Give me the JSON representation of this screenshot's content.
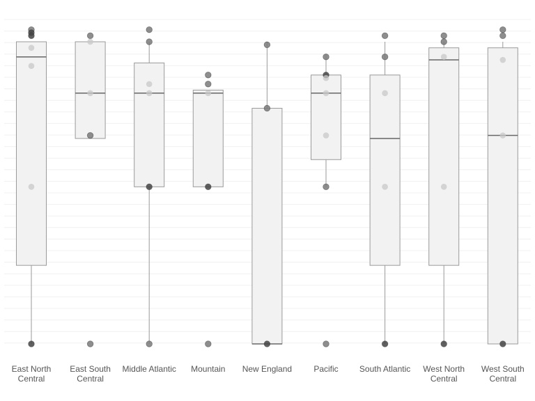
{
  "chart_data": {
    "type": "box",
    "title": "",
    "xlabel": "",
    "ylabel": "",
    "ylim": [
      0,
      100
    ],
    "grid": true,
    "legend": "none",
    "colors": {
      "box_fill": "#f2f2f2",
      "box_stroke": "#9a9a9a",
      "median": "#666666",
      "whisker": "#9a9a9a",
      "grid": "#f0f0f0",
      "point_light": "#c8c8c8",
      "point_mid": "#7a7a7a",
      "point_dark": "#444444"
    },
    "categories": [
      {
        "label": "East North Central",
        "lines": [
          "East North",
          "Central"
        ]
      },
      {
        "label": "East South Central",
        "lines": [
          "East South",
          "Central"
        ]
      },
      {
        "label": "Middle Atlantic",
        "lines": [
          "Middle Atlantic"
        ]
      },
      {
        "label": "Mountain",
        "lines": [
          "Mountain"
        ]
      },
      {
        "label": "New England",
        "lines": [
          "New England"
        ]
      },
      {
        "label": "Pacific",
        "lines": [
          "Pacific"
        ]
      },
      {
        "label": "South Atlantic",
        "lines": [
          "South Atlantic"
        ]
      },
      {
        "label": "West North Central",
        "lines": [
          "West North",
          "Central"
        ]
      },
      {
        "label": "West South Central",
        "lines": [
          "West South",
          "Central"
        ]
      }
    ],
    "boxes": [
      {
        "min": 0,
        "q1": 26,
        "median": 95,
        "q3": 100,
        "max": 100
      },
      {
        "min": 68,
        "q1": 68,
        "median": 83,
        "q3": 100,
        "max": 100
      },
      {
        "min": 0,
        "q1": 52,
        "median": 83,
        "q3": 93,
        "max": 100
      },
      {
        "min": 52,
        "q1": 52,
        "median": 83,
        "q3": 84,
        "max": 84
      },
      {
        "min": 0,
        "q1": 0,
        "median": 0,
        "q3": 78,
        "max": 100
      },
      {
        "min": 52,
        "q1": 61,
        "median": 83,
        "q3": 89,
        "max": 96
      },
      {
        "min": 0,
        "q1": 26,
        "median": 68,
        "q3": 89,
        "max": 100
      },
      {
        "min": 0,
        "q1": 26,
        "median": 94,
        "q3": 98,
        "max": 100
      },
      {
        "min": 0,
        "q1": 0,
        "median": 69,
        "q3": 98,
        "max": 100
      }
    ],
    "points": [
      [
        {
          "y": 104,
          "tone": "mid"
        },
        {
          "y": 103,
          "tone": "dark"
        },
        {
          "y": 102,
          "tone": "dark"
        },
        {
          "y": 98,
          "tone": "light"
        },
        {
          "y": 92,
          "tone": "light"
        },
        {
          "y": 52,
          "tone": "light"
        },
        {
          "y": 0,
          "tone": "dark"
        }
      ],
      [
        {
          "y": 102,
          "tone": "mid"
        },
        {
          "y": 100,
          "tone": "light"
        },
        {
          "y": 83,
          "tone": "light"
        },
        {
          "y": 69,
          "tone": "mid"
        },
        {
          "y": 0,
          "tone": "mid"
        }
      ],
      [
        {
          "y": 104,
          "tone": "mid"
        },
        {
          "y": 100,
          "tone": "mid"
        },
        {
          "y": 86,
          "tone": "light"
        },
        {
          "y": 83,
          "tone": "light"
        },
        {
          "y": 52,
          "tone": "dark"
        },
        {
          "y": 0,
          "tone": "mid"
        }
      ],
      [
        {
          "y": 89,
          "tone": "mid"
        },
        {
          "y": 86,
          "tone": "mid"
        },
        {
          "y": 83,
          "tone": "light"
        },
        {
          "y": 52,
          "tone": "dark"
        },
        {
          "y": 0,
          "tone": "mid"
        }
      ],
      [
        {
          "y": 99,
          "tone": "mid"
        },
        {
          "y": 78,
          "tone": "mid"
        },
        {
          "y": 0,
          "tone": "dark"
        }
      ],
      [
        {
          "y": 95,
          "tone": "mid"
        },
        {
          "y": 89,
          "tone": "dark"
        },
        {
          "y": 88,
          "tone": "light"
        },
        {
          "y": 83,
          "tone": "light"
        },
        {
          "y": 69,
          "tone": "light"
        },
        {
          "y": 52,
          "tone": "mid"
        },
        {
          "y": 0,
          "tone": "mid"
        }
      ],
      [
        {
          "y": 102,
          "tone": "mid"
        },
        {
          "y": 95,
          "tone": "mid"
        },
        {
          "y": 83,
          "tone": "light"
        },
        {
          "y": 52,
          "tone": "light"
        },
        {
          "y": 0,
          "tone": "dark"
        }
      ],
      [
        {
          "y": 102,
          "tone": "mid"
        },
        {
          "y": 100,
          "tone": "mid"
        },
        {
          "y": 95,
          "tone": "light"
        },
        {
          "y": 52,
          "tone": "light"
        },
        {
          "y": 0,
          "tone": "dark"
        }
      ],
      [
        {
          "y": 104,
          "tone": "mid"
        },
        {
          "y": 102,
          "tone": "mid"
        },
        {
          "y": 94,
          "tone": "light"
        },
        {
          "y": 69,
          "tone": "light"
        },
        {
          "y": 0,
          "tone": "dark"
        }
      ]
    ]
  }
}
